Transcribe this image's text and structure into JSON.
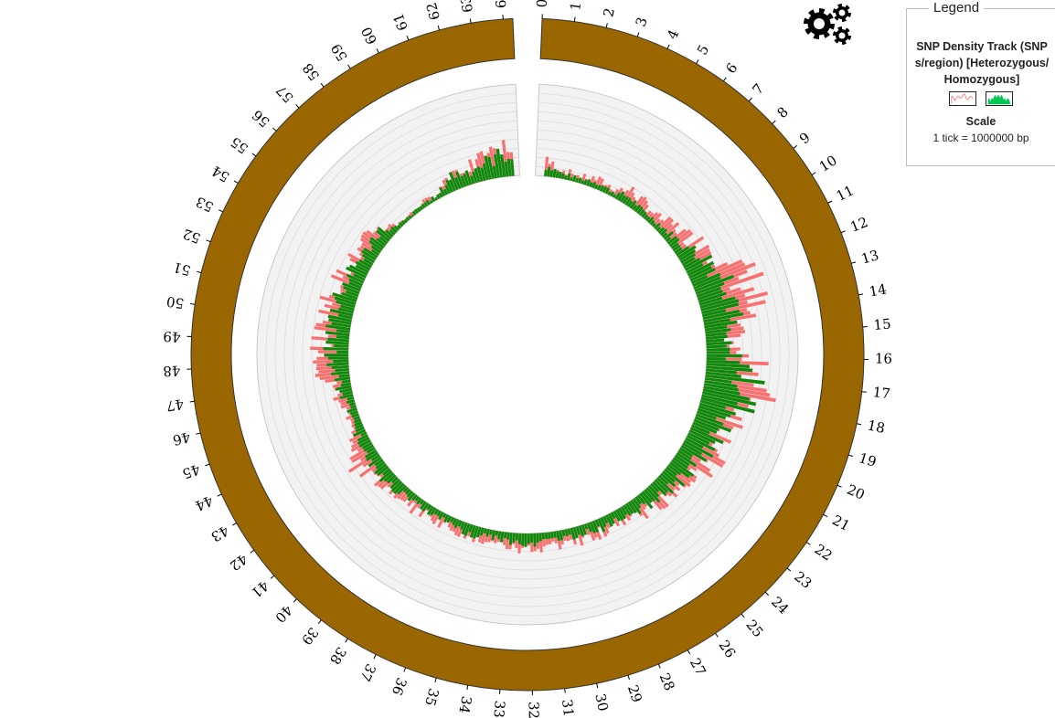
{
  "legend": {
    "title": "Legend",
    "track_name": "SNP Density Track (SNPs/region) [Heterozygous/Homozygous]",
    "scale_title": "Scale",
    "scale_text": "1 tick = 1000000 bp",
    "heterozygous_color": "#f08080",
    "homozygous_color": "#00c853"
  },
  "gear_icon": "settings-gears-icon",
  "colors": {
    "ideogram": "#996600",
    "track_background": "#f2f2f2",
    "heterozygous": "#f87171",
    "homozygous": "#0b8a0b"
  },
  "chart_data": {
    "type": "circular-histogram",
    "title": "",
    "ideogram_ticks": [
      "0",
      "1",
      "2",
      "3",
      "4",
      "5",
      "6",
      "7",
      "8",
      "9",
      "10",
      "11",
      "12",
      "13",
      "14",
      "15",
      "16",
      "17",
      "18",
      "19",
      "20",
      "21",
      "22",
      "23",
      "24",
      "25",
      "26",
      "27",
      "28",
      "29",
      "30",
      "31",
      "32",
      "33",
      "34",
      "35",
      "36",
      "37",
      "38",
      "39",
      "40",
      "41",
      "42",
      "43",
      "44",
      "45",
      "46",
      "47",
      "48",
      "49",
      "50",
      "51",
      "52",
      "53",
      "54",
      "55",
      "56",
      "57",
      "58",
      "59",
      "60",
      "61",
      "62",
      "63",
      "64"
    ],
    "genome_length_mb": 64.3,
    "track_max": 10,
    "homozygous_density": [
      1.2,
      0.6,
      0.5,
      0.8,
      0.5,
      1.0,
      0.6,
      0.7,
      0.9,
      1.3,
      2.6,
      3.2,
      4.6,
      4.2,
      2.4,
      2.0,
      4.6,
      5.2,
      4.7,
      3.3,
      3.1,
      2.6,
      2.2,
      2.0,
      1.8,
      1.5,
      1.3,
      1.3,
      1.0,
      1.2,
      1.1,
      1.1,
      1.3,
      1.0,
      0.9,
      1.1,
      0.9,
      0.8,
      0.9,
      1.0,
      1.2,
      1.3,
      1.2,
      1.1,
      1.0,
      1.0,
      1.3,
      1.8,
      2.0,
      2.2,
      2.3,
      2.4,
      1.9,
      1.7,
      1.4,
      1.8,
      0.4,
      0.3,
      0.5,
      0.4,
      1.8,
      1.5,
      2.0,
      2.6
    ],
    "heterozygous_density": [
      1.6,
      0.9,
      0.7,
      1.0,
      0.8,
      1.6,
      1.2,
      1.1,
      1.8,
      2.2,
      3.8,
      4.6,
      5.6,
      5.2,
      3.0,
      2.6,
      5.2,
      5.8,
      5.2,
      3.8,
      3.6,
      3.4,
      2.8,
      2.4,
      2.1,
      1.8,
      1.6,
      1.6,
      1.4,
      1.5,
      1.4,
      1.6,
      1.6,
      1.4,
      1.3,
      1.4,
      1.2,
      1.1,
      1.3,
      1.4,
      1.6,
      1.8,
      2.6,
      1.6,
      1.4,
      1.4,
      1.6,
      2.8,
      2.8,
      2.9,
      2.8,
      2.8,
      2.4,
      2.1,
      1.7,
      2.1,
      0.6,
      0.4,
      0.6,
      0.5,
      2.0,
      1.7,
      2.2,
      2.9
    ]
  }
}
